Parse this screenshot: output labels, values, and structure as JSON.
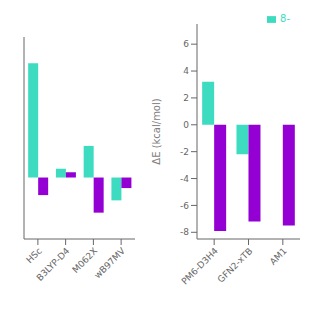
{
  "chart_data": [
    {
      "type": "bar",
      "categories": [
        "HSc",
        "B3LYP-D4",
        "M062X",
        "wB97MV"
      ],
      "series": [
        {
          "color": "#3DDBBF",
          "values": [
            6.5,
            0.5,
            1.8,
            -1.3
          ]
        },
        {
          "color": "#9400D3",
          "values": [
            -1.0,
            0.3,
            -2.0,
            -0.6
          ]
        }
      ],
      "ylim": [
        -3.5,
        8.0
      ],
      "tick_labels": "x",
      "grid": false
    },
    {
      "type": "bar",
      "categories": [
        "PM6-D3H4",
        "GFN2-xTB",
        "AM1"
      ],
      "series": [
        {
          "name": "8-",
          "color": "#3DDBBF",
          "values": [
            3.2,
            -2.2,
            0.0
          ]
        },
        {
          "color": "#9400D3",
          "values": [
            -7.9,
            -7.2,
            -7.5
          ]
        }
      ],
      "ylim": [
        -8.5,
        7.5
      ],
      "yticks": [
        -8,
        -6,
        -4,
        -2,
        0,
        2,
        4,
        6
      ],
      "ylabel": "ΔE (kcal/mol)",
      "legend": "upper right",
      "grid": false
    }
  ]
}
